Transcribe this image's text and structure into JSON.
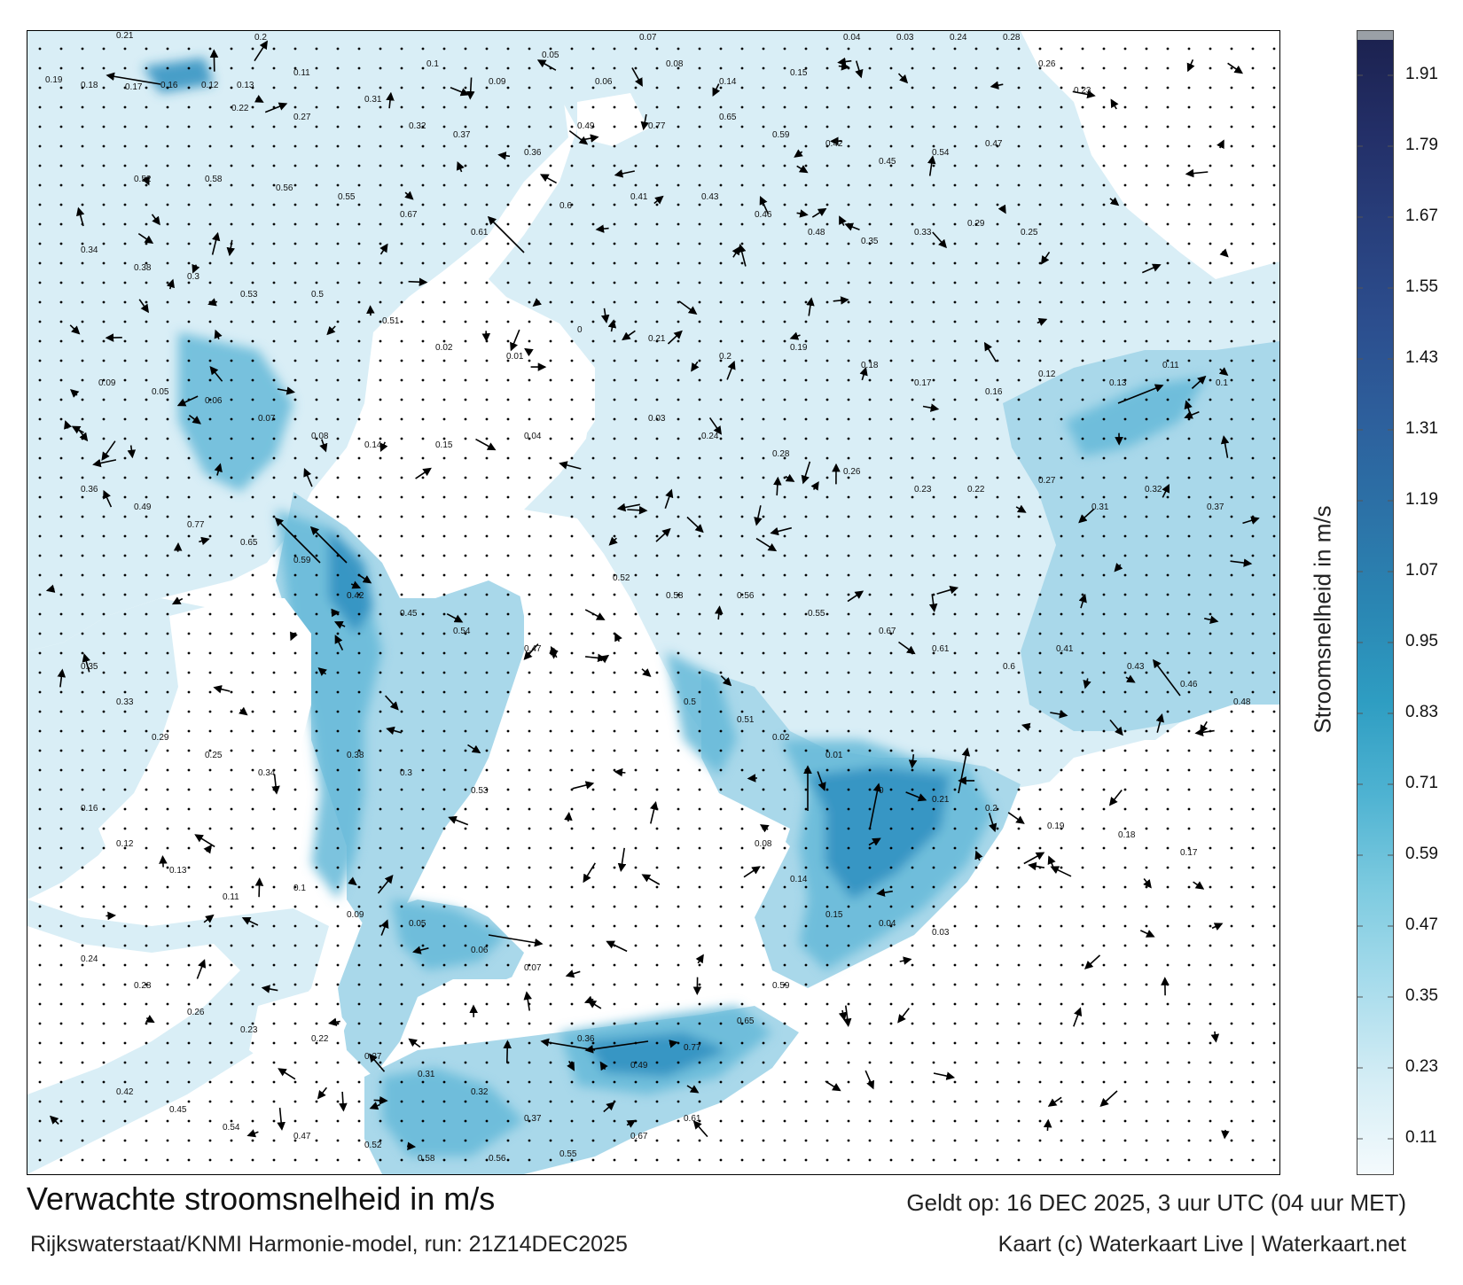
{
  "title": "Verwachte stroomsnelheid in m/s",
  "valid_time": "Geldt op: 16 DEC 2025, 3 uur UTC (04 uur MET)",
  "source": "Rijkswaterstaat/KNMI Harmonie-model, run: 21Z14DEC2025",
  "credit": "Kaart (c) Waterkaart Live | Waterkaart.net",
  "colorbar": {
    "title": "Stroomsnelheid in m/s",
    "ticks": [
      "1.91",
      "1.79",
      "1.67",
      "1.55",
      "1.43",
      "1.31",
      "1.19",
      "1.07",
      "0.95",
      "0.83",
      "0.71",
      "0.59",
      "0.47",
      "0.35",
      "0.23",
      "0.11"
    ],
    "min": 0.05,
    "max": 1.97,
    "colors": [
      "#f4fafd",
      "#d4edf5",
      "#a8dcec",
      "#7ecbe0",
      "#4fb3d2",
      "#2e9dc2",
      "#2a86b3",
      "#2c72a7",
      "#2d5f9c",
      "#2c4e8e",
      "#283f7c",
      "#232f68",
      "#1c2250"
    ]
  },
  "map_labels": [
    {
      "text": "0.21"
    },
    {
      "text": "0.2"
    },
    {
      "text": "0.19"
    },
    {
      "text": "0.18"
    },
    {
      "text": "0.17"
    },
    {
      "text": "0.16"
    },
    {
      "text": "0.12"
    },
    {
      "text": "0.13"
    },
    {
      "text": "0.11"
    },
    {
      "text": "0.1"
    },
    {
      "text": "0.09"
    },
    {
      "text": "0.05"
    },
    {
      "text": "0.06"
    },
    {
      "text": "0.07"
    },
    {
      "text": "0.08"
    },
    {
      "text": "0.14"
    },
    {
      "text": "0.15"
    },
    {
      "text": "0.04"
    },
    {
      "text": "0.03"
    },
    {
      "text": "0.24"
    },
    {
      "text": "0.28"
    },
    {
      "text": "0.26"
    },
    {
      "text": "0.23"
    },
    {
      "text": "0.22"
    },
    {
      "text": "0.27"
    },
    {
      "text": "0.31"
    },
    {
      "text": "0.32"
    },
    {
      "text": "0.37"
    },
    {
      "text": "0.36"
    },
    {
      "text": "0.49"
    },
    {
      "text": "0.77"
    },
    {
      "text": "0.65"
    },
    {
      "text": "0.59"
    },
    {
      "text": "0.42"
    },
    {
      "text": "0.45"
    },
    {
      "text": "0.54"
    },
    {
      "text": "0.47"
    },
    {
      "text": "0.52"
    },
    {
      "text": "0.58"
    },
    {
      "text": "0.56"
    },
    {
      "text": "0.55"
    },
    {
      "text": "0.67"
    },
    {
      "text": "0.61"
    },
    {
      "text": "0.6"
    },
    {
      "text": "0.41"
    },
    {
      "text": "0.43"
    },
    {
      "text": "0.46"
    },
    {
      "text": "0.48"
    },
    {
      "text": "0.35"
    },
    {
      "text": "0.33"
    },
    {
      "text": "0.29"
    },
    {
      "text": "0.25"
    },
    {
      "text": "0.34"
    },
    {
      "text": "0.38"
    },
    {
      "text": "0.3"
    },
    {
      "text": "0.53"
    },
    {
      "text": "0.5"
    },
    {
      "text": "0.51"
    },
    {
      "text": "0.02"
    },
    {
      "text": "0.01"
    },
    {
      "text": "0"
    }
  ]
}
